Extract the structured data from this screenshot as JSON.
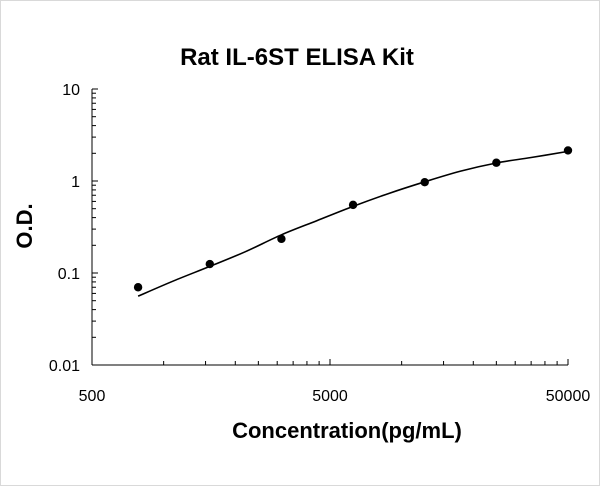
{
  "chart_data": {
    "type": "scatter",
    "title": "Rat IL-6ST ELISA Kit",
    "xlabel": "Concentration(pg/mL)",
    "ylabel": "O.D.",
    "x_scale": "log",
    "y_scale": "log",
    "xlim": [
      500,
      50000
    ],
    "ylim": [
      0.01,
      10
    ],
    "x_ticks": [
      "500",
      "5000",
      "50000"
    ],
    "y_ticks": [
      "10",
      "1",
      "0.1",
      "0.01"
    ],
    "grid": false,
    "legend": "none",
    "colors": {
      "points": "#000000",
      "curve": "#000000"
    },
    "points": [
      {
        "x": 781,
        "y": 0.07
      },
      {
        "x": 1563,
        "y": 0.125
      },
      {
        "x": 3125,
        "y": 0.235
      },
      {
        "x": 6250,
        "y": 0.55
      },
      {
        "x": 12500,
        "y": 0.97
      },
      {
        "x": 25000,
        "y": 1.58
      },
      {
        "x": 50000,
        "y": 2.15
      }
    ],
    "fit_curve": [
      {
        "x": 781,
        "y": 0.056
      },
      {
        "x": 1100,
        "y": 0.082
      },
      {
        "x": 1563,
        "y": 0.118
      },
      {
        "x": 2200,
        "y": 0.17
      },
      {
        "x": 3125,
        "y": 0.26
      },
      {
        "x": 4400,
        "y": 0.37
      },
      {
        "x": 6250,
        "y": 0.53
      },
      {
        "x": 8800,
        "y": 0.73
      },
      {
        "x": 12500,
        "y": 0.98
      },
      {
        "x": 17700,
        "y": 1.28
      },
      {
        "x": 25000,
        "y": 1.57
      },
      {
        "x": 35000,
        "y": 1.8
      },
      {
        "x": 50000,
        "y": 2.1
      }
    ]
  }
}
